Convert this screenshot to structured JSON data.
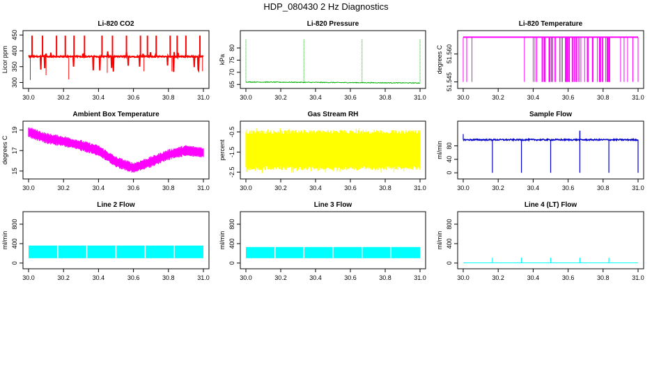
{
  "title": "HDP_080430  2 Hz Diagnostics",
  "chart_data": [
    {
      "type": "line",
      "title": "Li-820 CO2",
      "ylabel": "Licor ppm",
      "color": "#ff0000",
      "xlim": [
        30.0,
        31.0
      ],
      "ylim": [
        290,
        455
      ],
      "xticks": [
        "30.0",
        "30.2",
        "30.4",
        "30.6",
        "30.8",
        "31.0"
      ],
      "yticks": [
        {
          "v": 300,
          "label": "300"
        },
        {
          "v": 350,
          "label": "350"
        },
        {
          "v": 400,
          "label": "400"
        },
        {
          "v": 450,
          "label": "450"
        }
      ],
      "series": [
        {
          "pattern": "co2",
          "baseline": 382,
          "spike_high": 448,
          "spike_low": 300
        }
      ]
    },
    {
      "type": "line",
      "title": "Li-820 Pressure",
      "ylabel": "kPa",
      "color": "#00b000",
      "xlim": [
        30.0,
        31.0
      ],
      "ylim": [
        64.5,
        86
      ],
      "xticks": [
        "30.0",
        "30.2",
        "30.4",
        "30.6",
        "30.8",
        "31.0"
      ],
      "yticks": [
        {
          "v": 65,
          "label": "65"
        },
        {
          "v": 70,
          "label": "70"
        },
        {
          "v": 75,
          "label": "75"
        },
        {
          "v": 80,
          "label": "80"
        }
      ],
      "series": [
        {
          "pattern": "pressure",
          "start": 66.0,
          "end": 65.6,
          "spikes_x": [
            30.0,
            30.333,
            30.667,
            31.0
          ],
          "spike_high": 83.5
        }
      ]
    },
    {
      "type": "line",
      "title": "Li-820 Temperature",
      "ylabel": "degrees C",
      "color": "#ff00ff",
      "xlim": [
        30.0,
        31.0
      ],
      "ylim": [
        51.543,
        51.571
      ],
      "xticks": [
        "30.0",
        "30.2",
        "30.4",
        "30.6",
        "30.8",
        "31.0"
      ],
      "yticks": [
        {
          "v": 51.545,
          "label": "51.545"
        },
        {
          "v": 51.56,
          "label": "51.560"
        }
      ],
      "series": [
        {
          "pattern": "ltemp",
          "top": 51.569,
          "low": 51.545
        }
      ]
    },
    {
      "type": "area",
      "title": "Ambient Box Temperature",
      "ylabel": "degrees C",
      "color": "#ff00ff",
      "xlim": [
        30.0,
        31.0
      ],
      "ylim": [
        14.5,
        19.6
      ],
      "xticks": [
        "30.0",
        "30.2",
        "30.4",
        "30.6",
        "30.8",
        "31.0"
      ],
      "yticks": [
        {
          "v": 15,
          "label": "15"
        },
        {
          "v": 17,
          "label": "17"
        },
        {
          "v": 19,
          "label": "19"
        }
      ],
      "series": [
        {
          "pattern": "band",
          "x": [
            30.0,
            30.1,
            30.2,
            30.3,
            30.4,
            30.5,
            30.6,
            30.7,
            30.8,
            30.9,
            31.0
          ],
          "y": [
            18.8,
            18.2,
            17.9,
            17.5,
            17.0,
            15.9,
            15.3,
            15.9,
            16.6,
            17.0,
            16.8
          ],
          "halfwidth": 0.45
        }
      ]
    },
    {
      "type": "area",
      "title": "Gas Stream RH",
      "ylabel": "percent",
      "color": "#ffff00",
      "xlim": [
        30.0,
        31.0
      ],
      "ylim": [
        -2.7,
        -0.1
      ],
      "xticks": [
        "30.0",
        "30.2",
        "30.4",
        "30.6",
        "30.8",
        "31.0"
      ],
      "yticks": [
        {
          "v": -2.5,
          "label": "-2.5"
        },
        {
          "v": -1.5,
          "label": "-1.5"
        },
        {
          "v": -0.5,
          "label": "-0.5"
        }
      ],
      "series": [
        {
          "pattern": "noise",
          "low": -2.2,
          "high": -0.6,
          "min": -2.55,
          "max": -0.3
        }
      ]
    },
    {
      "type": "line",
      "title": "Sample Flow",
      "ylabel": "ml/min",
      "color": "#0000cc",
      "xlim": [
        30.0,
        31.0
      ],
      "ylim": [
        -10,
        145
      ],
      "xticks": [
        "30.0",
        "30.2",
        "30.4",
        "30.6",
        "30.8",
        "31.0"
      ],
      "yticks": [
        {
          "v": 0,
          "label": "0"
        },
        {
          "v": 40,
          "label": "40"
        },
        {
          "v": 80,
          "label": "80"
        }
      ],
      "series": [
        {
          "pattern": "sflow",
          "baseline": 98,
          "dips_x": [
            30.167,
            30.333,
            30.5,
            30.667,
            30.833,
            31.0
          ],
          "dip_low": 0
        }
      ]
    },
    {
      "type": "area",
      "title": "Line 2 Flow",
      "ylabel": "ml/min",
      "color": "#00ffff",
      "xlim": [
        30.0,
        31.0
      ],
      "ylim": [
        -60,
        1000
      ],
      "xticks": [
        "30.0",
        "30.2",
        "30.4",
        "30.6",
        "30.8",
        "31.0"
      ],
      "yticks": [
        {
          "v": 0,
          "label": "0"
        },
        {
          "v": 400,
          "label": "400"
        },
        {
          "v": 800,
          "label": "800"
        }
      ],
      "series": [
        {
          "pattern": "block",
          "low": 100,
          "high": 360,
          "gaps_x": [
            30.167,
            30.333,
            30.5,
            30.667,
            30.833
          ]
        }
      ]
    },
    {
      "type": "area",
      "title": "Line 3 Flow",
      "ylabel": "ml/min",
      "color": "#00ffff",
      "xlim": [
        30.0,
        31.0
      ],
      "ylim": [
        -60,
        1000
      ],
      "xticks": [
        "30.0",
        "30.2",
        "30.4",
        "30.6",
        "30.8",
        "31.0"
      ],
      "yticks": [
        {
          "v": 0,
          "label": "0"
        },
        {
          "v": 400,
          "label": "400"
        },
        {
          "v": 800,
          "label": "800"
        }
      ],
      "series": [
        {
          "pattern": "block",
          "low": 100,
          "high": 330,
          "gaps_x": [
            30.167,
            30.333,
            30.5,
            30.667,
            30.833
          ]
        }
      ]
    },
    {
      "type": "line",
      "title": "Line 4 (LT) Flow",
      "ylabel": "ml/min",
      "color": "#00ffff",
      "xlim": [
        30.0,
        31.0
      ],
      "ylim": [
        -60,
        1000
      ],
      "xticks": [
        "30.0",
        "30.2",
        "30.4",
        "30.6",
        "30.8",
        "31.0"
      ],
      "yticks": [
        {
          "v": 0,
          "label": "0"
        },
        {
          "v": 400,
          "label": "400"
        },
        {
          "v": 800,
          "label": "800"
        }
      ],
      "series": [
        {
          "pattern": "lt",
          "baseline": 5,
          "spikes_x": [
            30.167,
            30.333,
            30.5,
            30.667,
            30.833
          ],
          "spike_high": 110
        }
      ]
    }
  ]
}
